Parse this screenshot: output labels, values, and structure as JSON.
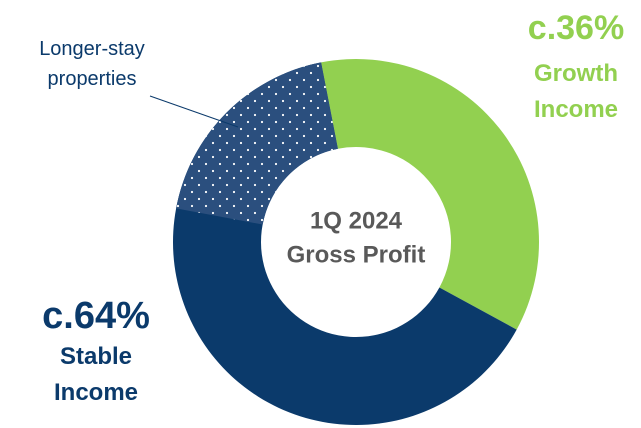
{
  "chart_data": {
    "type": "donut",
    "title": [
      "1Q 2024",
      "Gross Profit"
    ],
    "categories": [
      "Growth Income",
      "Stable Income"
    ],
    "values": [
      36,
      64
    ],
    "value_labels": [
      "c.36%",
      "c.64%"
    ],
    "colors": [
      "#92d050",
      "#0b3a6b"
    ],
    "sub_segment": {
      "name": "Longer-stay properties",
      "value": 19,
      "parent": 1,
      "color": "#2b4f7e"
    }
  }
}
